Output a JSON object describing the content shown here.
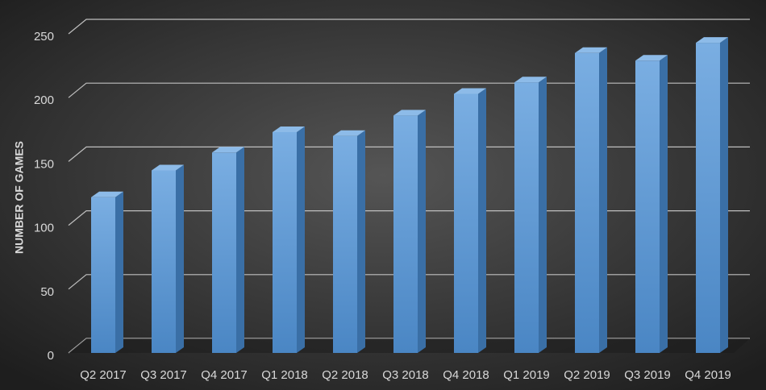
{
  "chart_data": {
    "type": "bar3d",
    "y_label": "NUMBER OF GAMES",
    "categories": [
      "Q2 2017",
      "Q3 2017",
      "Q4 2017",
      "Q1 2018",
      "Q2 2018",
      "Q3 2018",
      "Q4 2018",
      "Q1 2019",
      "Q2 2019",
      "Q3 2019",
      "Q4 2019"
    ],
    "values": [
      122,
      143,
      157,
      173,
      170,
      186,
      203,
      212,
      235,
      229,
      243
    ],
    "color": "#5b9bd5",
    "ylim": [
      0,
      250
    ],
    "yticks": [
      0,
      50,
      100,
      150,
      200,
      250
    ],
    "grid": true
  }
}
